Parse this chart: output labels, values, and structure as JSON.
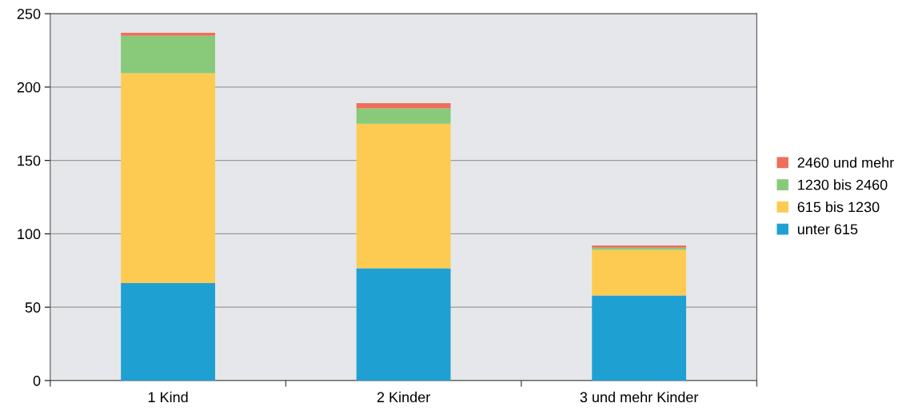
{
  "chart_data": {
    "type": "bar",
    "stacked": true,
    "categories": [
      "1 Kind",
      "2 Kinder",
      "3 und mehr Kinder"
    ],
    "series": [
      {
        "name": "unter 615",
        "color": "#1fa0d3",
        "values": [
          66.5,
          76.5,
          58
        ]
      },
      {
        "name": "615 bis 1230",
        "color": "#fdcb51",
        "values": [
          143,
          98.5,
          31
        ]
      },
      {
        "name": "1230 bis 2460",
        "color": "#88c97a",
        "values": [
          25.5,
          10.5,
          1.5
        ]
      },
      {
        "name": "2460 und mehr",
        "color": "#ef6e5b",
        "values": [
          2,
          3.5,
          1.5
        ]
      }
    ],
    "ylim": [
      0,
      250
    ],
    "yticks": [
      0,
      50,
      100,
      150,
      200,
      250
    ],
    "grid": "y",
    "legend": "right"
  }
}
